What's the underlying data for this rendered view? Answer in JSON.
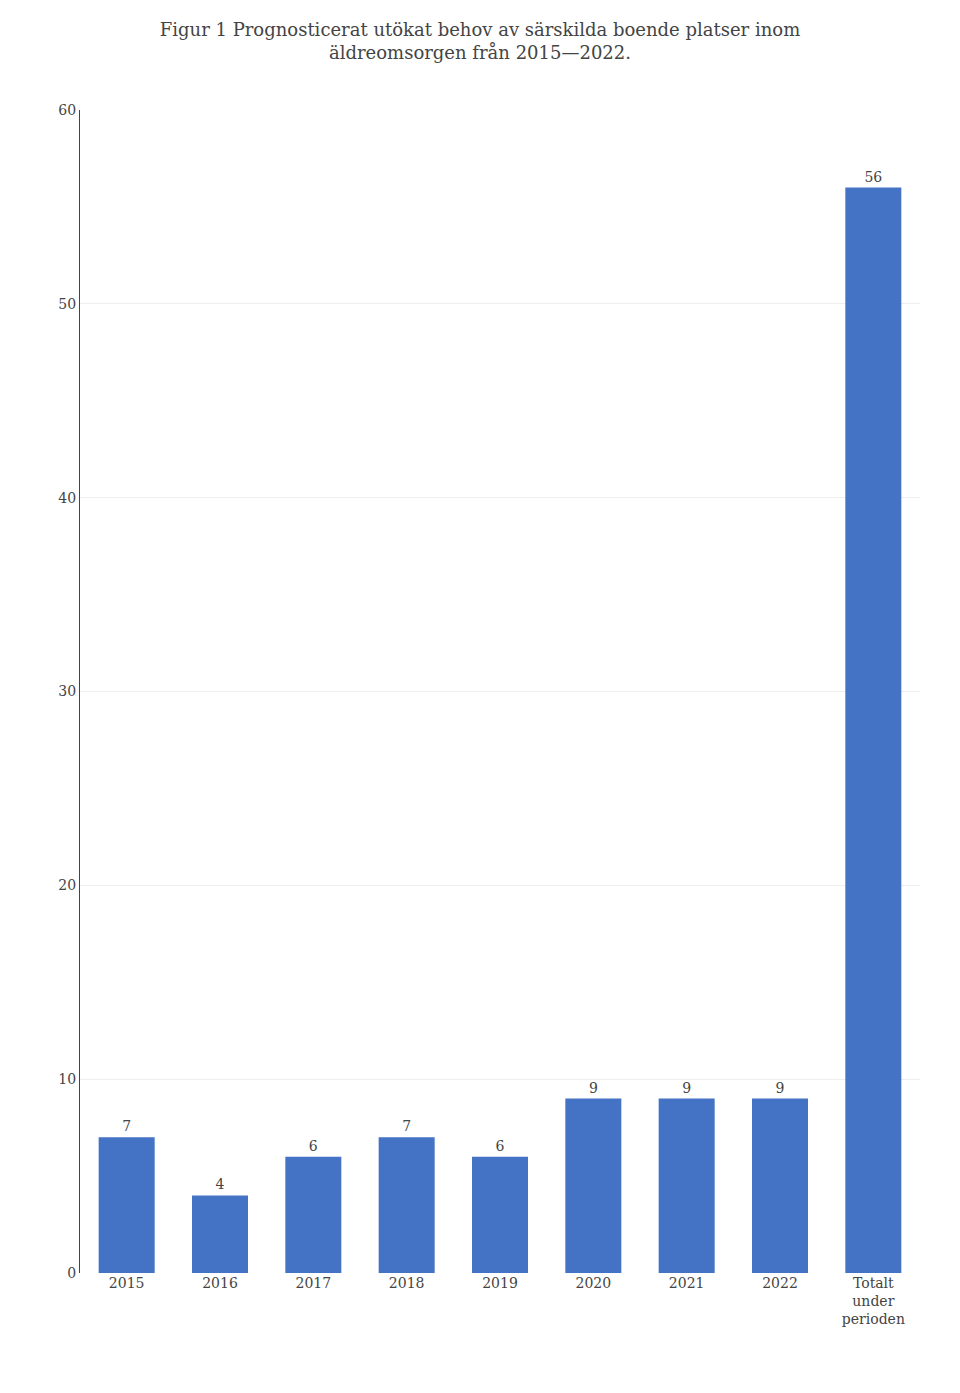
{
  "chart_data": {
    "type": "bar",
    "title": "Figur 1 Prognosticerat utökat behov av särskilda boende platser inom\näldreomsorgen från 2015—2022.",
    "categories": [
      "2015",
      "2016",
      "2017",
      "2018",
      "2019",
      "2020",
      "2021",
      "2022",
      "Totalt\nunder\nperioden"
    ],
    "values": [
      7,
      4,
      6,
      7,
      6,
      9,
      9,
      9,
      56
    ],
    "color": "#4472c4",
    "ylim": [
      0,
      60
    ],
    "yticks": [
      0,
      10,
      20,
      30,
      40,
      50,
      60
    ],
    "grid": true,
    "data_labels": true
  }
}
